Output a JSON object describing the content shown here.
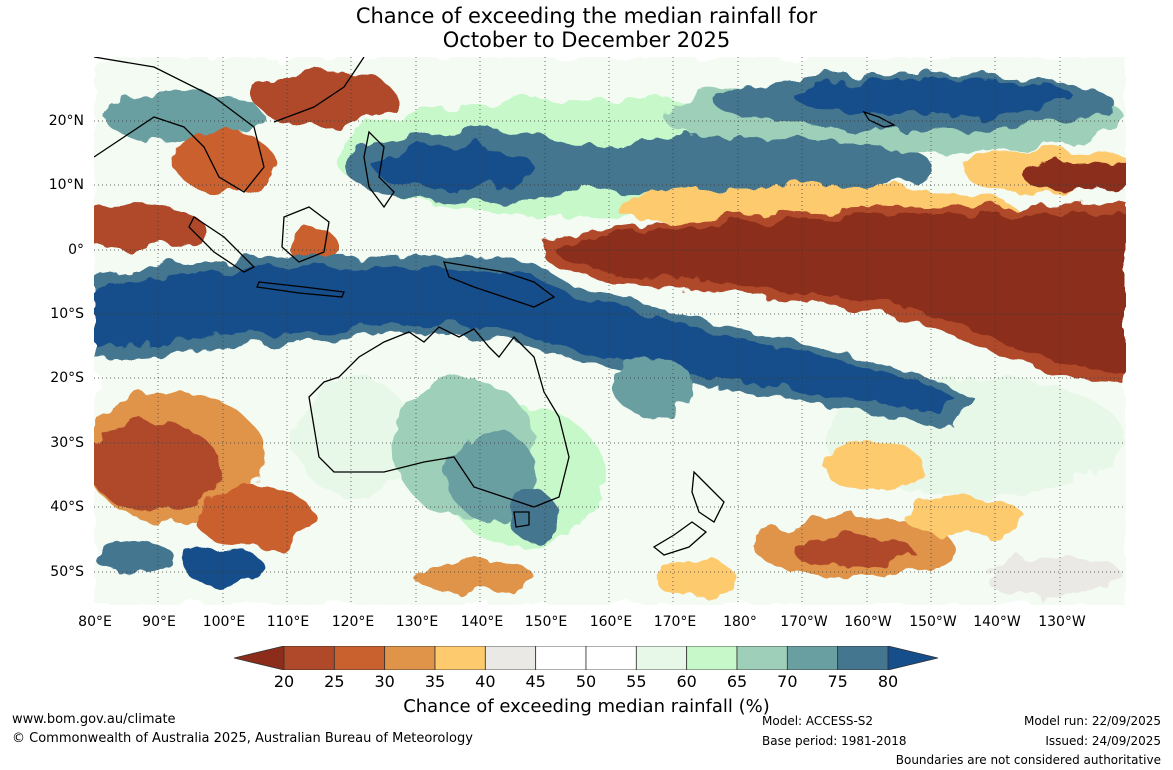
{
  "title": {
    "line1": "Chance of exceeding the median rainfall for",
    "line2": "October to December 2025"
  },
  "lat_labels": [
    "20°N",
    "10°N",
    "0°",
    "10°S",
    "20°S",
    "30°S",
    "40°S",
    "50°S"
  ],
  "lon_labels": [
    "80°E",
    "90°E",
    "100°E",
    "110°E",
    "120°E",
    "130°E",
    "140°E",
    "150°E",
    "160°E",
    "170°E",
    "180°",
    "170°W",
    "160°W",
    "150°W",
    "140°W",
    "130°W"
  ],
  "colorbar": {
    "ticks": [
      "20",
      "25",
      "30",
      "35",
      "40",
      "45",
      "50",
      "55",
      "60",
      "65",
      "70",
      "75",
      "80"
    ],
    "colors": [
      "#8c2d1b",
      "#b0482a",
      "#c9612f",
      "#e0944a",
      "#fdca6e",
      "#ebe9e5",
      "#ffffff",
      "#ffffff",
      "#e8f8e8",
      "#c7f8c9",
      "#9ed0b9",
      "#6a9fa2",
      "#45768f",
      "#154e8b"
    ],
    "title": "Chance of exceeding median rainfall (%)"
  },
  "footer": {
    "website": "www.bom.gov.au/climate",
    "copyright": "© Commonwealth of Australia 2025, Australian Bureau of Meteorology",
    "model": "Model: ACCESS-S2",
    "base_period": "Base period: 1981-2018",
    "model_run": "Model run: 22/09/2025",
    "issued": "Issued: 24/09/2025",
    "disclaimer": "Boundaries are not considered authoritative"
  }
}
